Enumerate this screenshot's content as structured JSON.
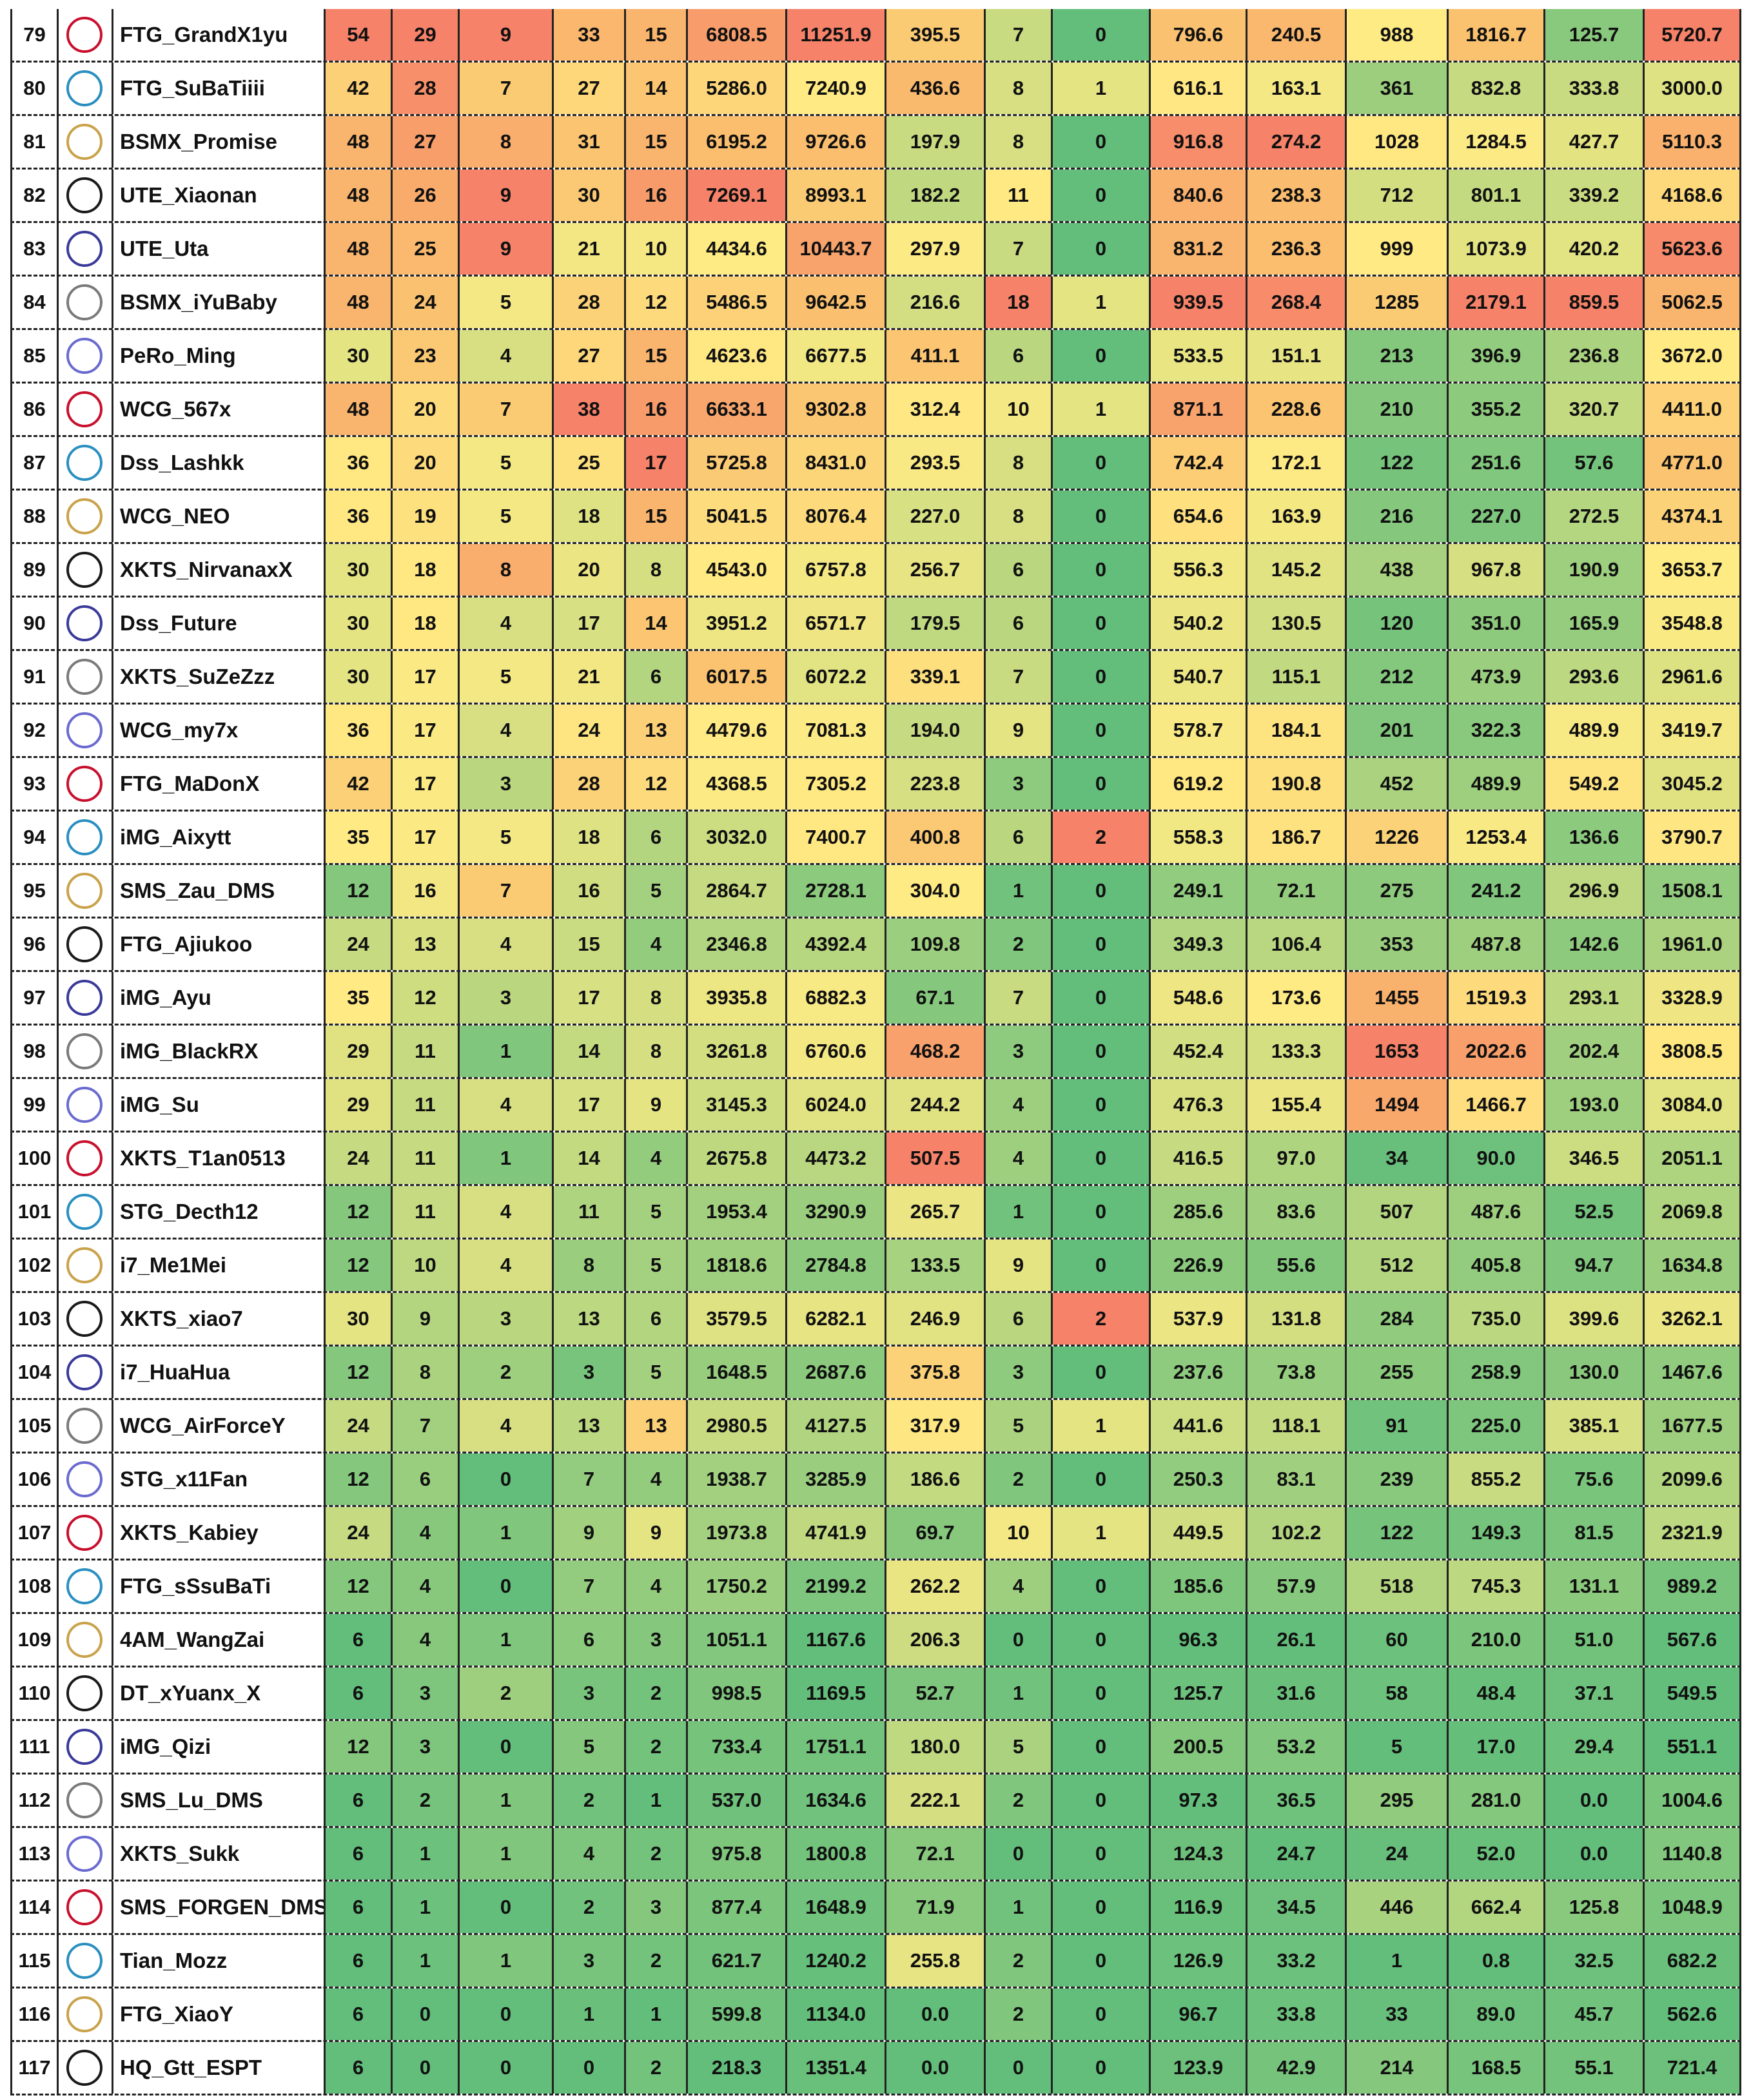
{
  "table": {
    "rows": [
      {
        "rank": 79,
        "player": "FTG_GrandX1yu",
        "cells": [
          "54",
          "29",
          "9",
          "33",
          "15",
          "6808.5",
          "11251.9",
          "395.5",
          "7",
          "0",
          "796.6",
          "240.5",
          "988",
          "1816.7",
          "125.7",
          "5720.7"
        ]
      },
      {
        "rank": 80,
        "player": "FTG_SuBaTiiii",
        "cells": [
          "42",
          "28",
          "7",
          "27",
          "14",
          "5286.0",
          "7240.9",
          "436.6",
          "8",
          "1",
          "616.1",
          "163.1",
          "361",
          "832.8",
          "333.8",
          "3000.0"
        ]
      },
      {
        "rank": 81,
        "player": "BSMX_Promise",
        "cells": [
          "48",
          "27",
          "8",
          "31",
          "15",
          "6195.2",
          "9726.6",
          "197.9",
          "8",
          "0",
          "916.8",
          "274.2",
          "1028",
          "1284.5",
          "427.7",
          "5110.3"
        ]
      },
      {
        "rank": 82,
        "player": "UTE_Xiaonan",
        "cells": [
          "48",
          "26",
          "9",
          "30",
          "16",
          "7269.1",
          "8993.1",
          "182.2",
          "11",
          "0",
          "840.6",
          "238.3",
          "712",
          "801.1",
          "339.2",
          "4168.6"
        ]
      },
      {
        "rank": 83,
        "player": "UTE_Uta",
        "cells": [
          "48",
          "25",
          "9",
          "21",
          "10",
          "4434.6",
          "10443.7",
          "297.9",
          "7",
          "0",
          "831.2",
          "236.3",
          "999",
          "1073.9",
          "420.2",
          "5623.6"
        ]
      },
      {
        "rank": 84,
        "player": "BSMX_iYuBaby",
        "cells": [
          "48",
          "24",
          "5",
          "28",
          "12",
          "5486.5",
          "9642.5",
          "216.6",
          "18",
          "1",
          "939.5",
          "268.4",
          "1285",
          "2179.1",
          "859.5",
          "5062.5"
        ]
      },
      {
        "rank": 85,
        "player": "PeRo_Ming",
        "cells": [
          "30",
          "23",
          "4",
          "27",
          "15",
          "4623.6",
          "6677.5",
          "411.1",
          "6",
          "0",
          "533.5",
          "151.1",
          "213",
          "396.9",
          "236.8",
          "3672.0"
        ]
      },
      {
        "rank": 86,
        "player": "WCG_567x",
        "cells": [
          "48",
          "20",
          "7",
          "38",
          "16",
          "6633.1",
          "9302.8",
          "312.4",
          "10",
          "1",
          "871.1",
          "228.6",
          "210",
          "355.2",
          "320.7",
          "4411.0"
        ]
      },
      {
        "rank": 87,
        "player": "Dss_Lashkk",
        "cells": [
          "36",
          "20",
          "5",
          "25",
          "17",
          "5725.8",
          "8431.0",
          "293.5",
          "8",
          "0",
          "742.4",
          "172.1",
          "122",
          "251.6",
          "57.6",
          "4771.0"
        ]
      },
      {
        "rank": 88,
        "player": "WCG_NEO",
        "cells": [
          "36",
          "19",
          "5",
          "18",
          "15",
          "5041.5",
          "8076.4",
          "227.0",
          "8",
          "0",
          "654.6",
          "163.9",
          "216",
          "227.0",
          "272.5",
          "4374.1"
        ]
      },
      {
        "rank": 89,
        "player": "XKTS_NirvanaxX",
        "cells": [
          "30",
          "18",
          "8",
          "20",
          "8",
          "4543.0",
          "6757.8",
          "256.7",
          "6",
          "0",
          "556.3",
          "145.2",
          "438",
          "967.8",
          "190.9",
          "3653.7"
        ]
      },
      {
        "rank": 90,
        "player": "Dss_Future",
        "cells": [
          "30",
          "18",
          "4",
          "17",
          "14",
          "3951.2",
          "6571.7",
          "179.5",
          "6",
          "0",
          "540.2",
          "130.5",
          "120",
          "351.0",
          "165.9",
          "3548.8"
        ]
      },
      {
        "rank": 91,
        "player": "XKTS_SuZeZzz",
        "cells": [
          "30",
          "17",
          "5",
          "21",
          "6",
          "6017.5",
          "6072.2",
          "339.1",
          "7",
          "0",
          "540.7",
          "115.1",
          "212",
          "473.9",
          "293.6",
          "2961.6"
        ]
      },
      {
        "rank": 92,
        "player": "WCG_my7x",
        "cells": [
          "36",
          "17",
          "4",
          "24",
          "13",
          "4479.6",
          "7081.3",
          "194.0",
          "9",
          "0",
          "578.7",
          "184.1",
          "201",
          "322.3",
          "489.9",
          "3419.7"
        ]
      },
      {
        "rank": 93,
        "player": "FTG_MaDonX",
        "cells": [
          "42",
          "17",
          "3",
          "28",
          "12",
          "4368.5",
          "7305.2",
          "223.8",
          "3",
          "0",
          "619.2",
          "190.8",
          "452",
          "489.9",
          "549.2",
          "3045.2"
        ]
      },
      {
        "rank": 94,
        "player": "iMG_Aixytt",
        "cells": [
          "35",
          "17",
          "5",
          "18",
          "6",
          "3032.0",
          "7400.7",
          "400.8",
          "6",
          "2",
          "558.3",
          "186.7",
          "1226",
          "1253.4",
          "136.6",
          "3790.7"
        ]
      },
      {
        "rank": 95,
        "player": "SMS_Zau_DMS",
        "cells": [
          "12",
          "16",
          "7",
          "16",
          "5",
          "2864.7",
          "2728.1",
          "304.0",
          "1",
          "0",
          "249.1",
          "72.1",
          "275",
          "241.2",
          "296.9",
          "1508.1"
        ]
      },
      {
        "rank": 96,
        "player": "FTG_Ajiukoo",
        "cells": [
          "24",
          "13",
          "4",
          "15",
          "4",
          "2346.8",
          "4392.4",
          "109.8",
          "2",
          "0",
          "349.3",
          "106.4",
          "353",
          "487.8",
          "142.6",
          "1961.0"
        ]
      },
      {
        "rank": 97,
        "player": "iMG_Ayu",
        "cells": [
          "35",
          "12",
          "3",
          "17",
          "8",
          "3935.8",
          "6882.3",
          "67.1",
          "7",
          "0",
          "548.6",
          "173.6",
          "1455",
          "1519.3",
          "293.1",
          "3328.9"
        ]
      },
      {
        "rank": 98,
        "player": "iMG_BlackRX",
        "cells": [
          "29",
          "11",
          "1",
          "14",
          "8",
          "3261.8",
          "6760.6",
          "468.2",
          "3",
          "0",
          "452.4",
          "133.3",
          "1653",
          "2022.6",
          "202.4",
          "3808.5"
        ]
      },
      {
        "rank": 99,
        "player": "iMG_Su",
        "cells": [
          "29",
          "11",
          "4",
          "17",
          "9",
          "3145.3",
          "6024.0",
          "244.2",
          "4",
          "0",
          "476.3",
          "155.4",
          "1494",
          "1466.7",
          "193.0",
          "3084.0"
        ]
      },
      {
        "rank": 100,
        "player": "XKTS_T1an0513",
        "cells": [
          "24",
          "11",
          "1",
          "14",
          "4",
          "2675.8",
          "4473.2",
          "507.5",
          "4",
          "0",
          "416.5",
          "97.0",
          "34",
          "90.0",
          "346.5",
          "2051.1"
        ]
      },
      {
        "rank": 101,
        "player": "STG_Decth12",
        "cells": [
          "12",
          "11",
          "4",
          "11",
          "5",
          "1953.4",
          "3290.9",
          "265.7",
          "1",
          "0",
          "285.6",
          "83.6",
          "507",
          "487.6",
          "52.5",
          "2069.8"
        ]
      },
      {
        "rank": 102,
        "player": "i7_Me1Mei",
        "cells": [
          "12",
          "10",
          "4",
          "8",
          "5",
          "1818.6",
          "2784.8",
          "133.5",
          "9",
          "0",
          "226.9",
          "55.6",
          "512",
          "405.8",
          "94.7",
          "1634.8"
        ]
      },
      {
        "rank": 103,
        "player": "XKTS_xiao7",
        "cells": [
          "30",
          "9",
          "3",
          "13",
          "6",
          "3579.5",
          "6282.1",
          "246.9",
          "6",
          "2",
          "537.9",
          "131.8",
          "284",
          "735.0",
          "399.6",
          "3262.1"
        ]
      },
      {
        "rank": 104,
        "player": "i7_HuaHua",
        "cells": [
          "12",
          "8",
          "2",
          "3",
          "5",
          "1648.5",
          "2687.6",
          "375.8",
          "3",
          "0",
          "237.6",
          "73.8",
          "255",
          "258.9",
          "130.0",
          "1467.6"
        ]
      },
      {
        "rank": 105,
        "player": "WCG_AirForceY",
        "cells": [
          "24",
          "7",
          "4",
          "13",
          "13",
          "2980.5",
          "4127.5",
          "317.9",
          "5",
          "1",
          "441.6",
          "118.1",
          "91",
          "225.0",
          "385.1",
          "1677.5"
        ]
      },
      {
        "rank": 106,
        "player": "STG_x11Fan",
        "cells": [
          "12",
          "6",
          "0",
          "7",
          "4",
          "1938.7",
          "3285.9",
          "186.6",
          "2",
          "0",
          "250.3",
          "83.1",
          "239",
          "855.2",
          "75.6",
          "2099.6"
        ]
      },
      {
        "rank": 107,
        "player": "XKTS_Kabiey",
        "cells": [
          "24",
          "4",
          "1",
          "9",
          "9",
          "1973.8",
          "4741.9",
          "69.7",
          "10",
          "1",
          "449.5",
          "102.2",
          "122",
          "149.3",
          "81.5",
          "2321.9"
        ]
      },
      {
        "rank": 108,
        "player": "FTG_sSsuBaTi",
        "cells": [
          "12",
          "4",
          "0",
          "7",
          "4",
          "1750.2",
          "2199.2",
          "262.2",
          "4",
          "0",
          "185.6",
          "57.9",
          "518",
          "745.3",
          "131.1",
          "989.2"
        ]
      },
      {
        "rank": 109,
        "player": "4AM_WangZai",
        "cells": [
          "6",
          "4",
          "1",
          "6",
          "3",
          "1051.1",
          "1167.6",
          "206.3",
          "0",
          "0",
          "96.3",
          "26.1",
          "60",
          "210.0",
          "51.0",
          "567.6"
        ]
      },
      {
        "rank": 110,
        "player": "DT_xYuanx_X",
        "cells": [
          "6",
          "3",
          "2",
          "3",
          "2",
          "998.5",
          "1169.5",
          "52.7",
          "1",
          "0",
          "125.7",
          "31.6",
          "58",
          "48.4",
          "37.1",
          "549.5"
        ]
      },
      {
        "rank": 111,
        "player": "iMG_Qizi",
        "cells": [
          "12",
          "3",
          "0",
          "5",
          "2",
          "733.4",
          "1751.1",
          "180.0",
          "5",
          "0",
          "200.5",
          "53.2",
          "5",
          "17.0",
          "29.4",
          "551.1"
        ]
      },
      {
        "rank": 112,
        "player": "SMS_Lu_DMS",
        "cells": [
          "6",
          "2",
          "1",
          "2",
          "1",
          "537.0",
          "1634.6",
          "222.1",
          "2",
          "0",
          "97.3",
          "36.5",
          "295",
          "281.0",
          "0.0",
          "1004.6"
        ]
      },
      {
        "rank": 113,
        "player": "XKTS_Sukk",
        "cells": [
          "6",
          "1",
          "1",
          "4",
          "2",
          "975.8",
          "1800.8",
          "72.1",
          "0",
          "0",
          "124.3",
          "24.7",
          "24",
          "52.0",
          "0.0",
          "1140.8"
        ]
      },
      {
        "rank": 114,
        "player": "SMS_FORGEN_DMS",
        "cells": [
          "6",
          "1",
          "0",
          "2",
          "3",
          "877.4",
          "1648.9",
          "71.9",
          "1",
          "0",
          "116.9",
          "34.5",
          "446",
          "662.4",
          "125.8",
          "1048.9"
        ]
      },
      {
        "rank": 115,
        "player": "Tian_Mozz",
        "cells": [
          "6",
          "1",
          "1",
          "3",
          "2",
          "621.7",
          "1240.2",
          "255.8",
          "2",
          "0",
          "126.9",
          "33.2",
          "1",
          "0.8",
          "32.5",
          "682.2"
        ]
      },
      {
        "rank": 116,
        "player": "FTG_XiaoY",
        "cells": [
          "6",
          "0",
          "0",
          "1",
          "1",
          "599.8",
          "1134.0",
          "0.0",
          "2",
          "0",
          "96.7",
          "33.8",
          "33",
          "89.0",
          "45.7",
          "562.6"
        ]
      },
      {
        "rank": 117,
        "player": "HQ_Gtt_ESPT",
        "cells": [
          "6",
          "0",
          "0",
          "0",
          "2",
          "218.3",
          "1351.4",
          "0.0",
          "0",
          "0",
          "123.9",
          "42.9",
          "214",
          "168.5",
          "55.1",
          "721.4"
        ]
      }
    ]
  }
}
